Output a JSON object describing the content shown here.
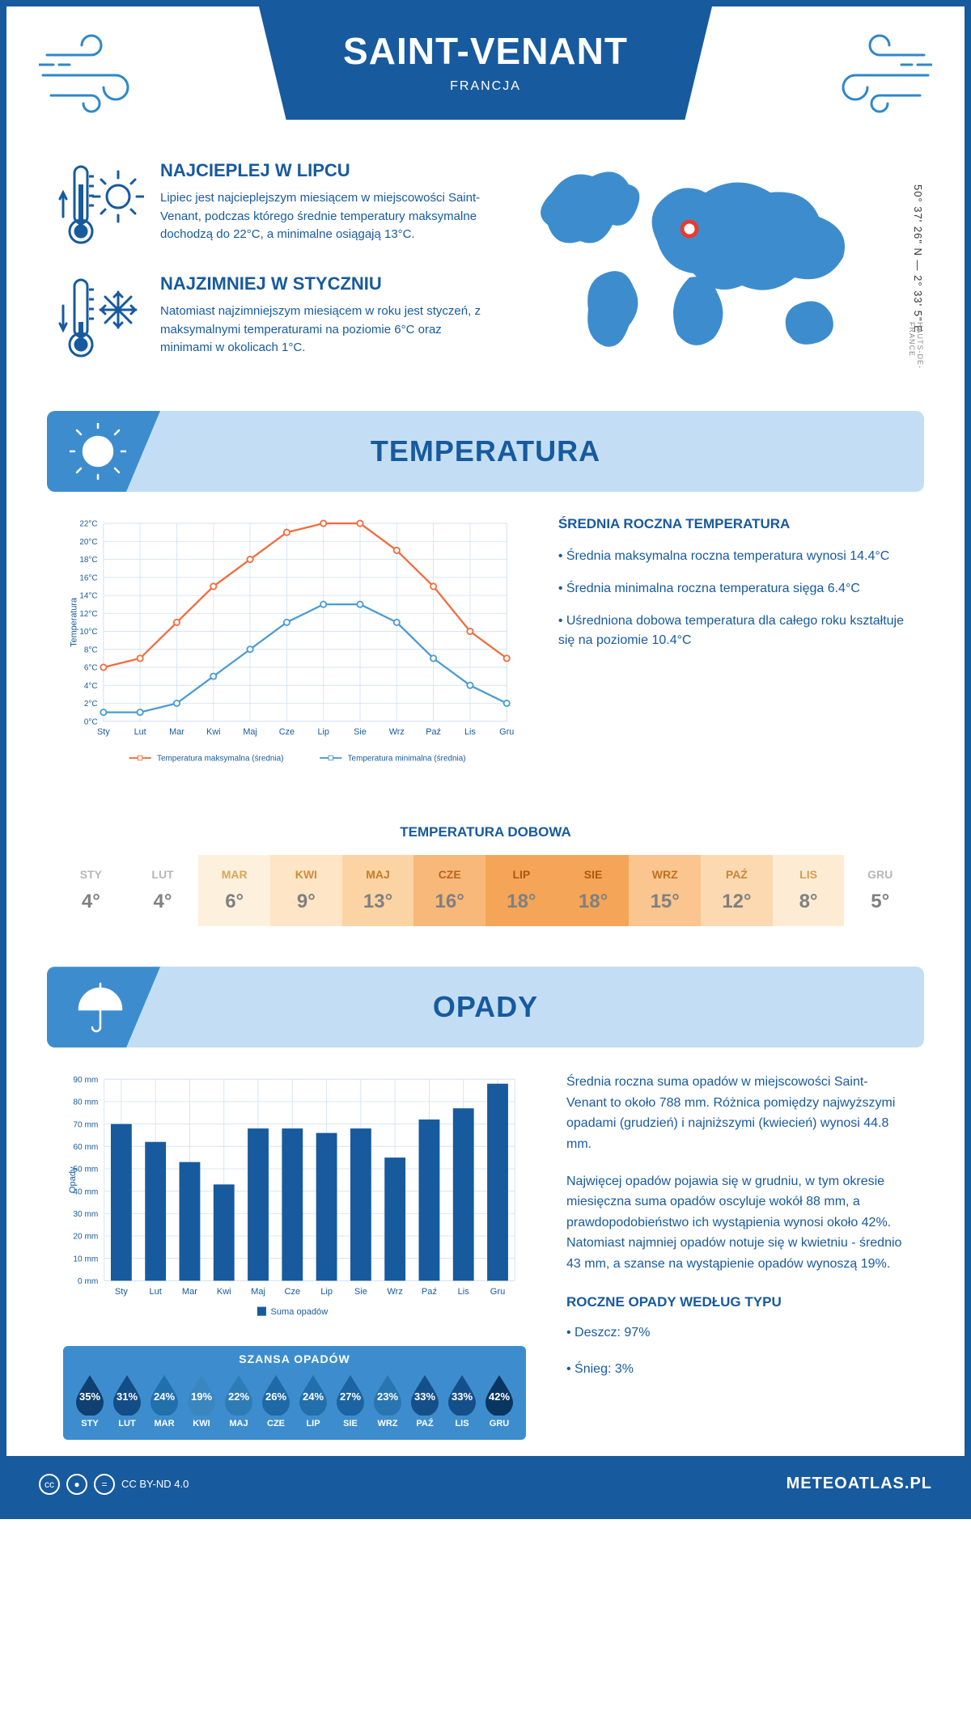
{
  "header": {
    "city": "SAINT-VENANT",
    "country": "FRANCJA",
    "coords": "50° 37' 26\" N — 2° 33' 5\" E",
    "region": "HAUTS-DE-FRANCE"
  },
  "hottest": {
    "title": "NAJCIEPLEJ W LIPCU",
    "text": "Lipiec jest najcieplejszym miesiącem w miejscowości Saint-Venant, podczas którego średnie temperatury maksymalne dochodzą do 22°C, a minimalne osiągają 13°C."
  },
  "coldest": {
    "title": "NAJZIMNIEJ W STYCZNIU",
    "text": "Natomiast najzimniejszym miesiącem w roku jest styczeń, z maksymalnymi temperaturami na poziomie 6°C oraz minimami w okolicach 1°C."
  },
  "sections": {
    "temperature": "TEMPERATURA",
    "precipitation": "OPADY"
  },
  "temp_chart": {
    "ylabel": "Temperatura",
    "months": [
      "Sty",
      "Lut",
      "Mar",
      "Kwi",
      "Maj",
      "Cze",
      "Lip",
      "Sie",
      "Wrz",
      "Paź",
      "Lis",
      "Gru"
    ],
    "max_values": [
      6,
      7,
      11,
      15,
      18,
      21,
      22,
      22,
      19,
      15,
      10,
      7
    ],
    "min_values": [
      1,
      1,
      2,
      5,
      8,
      11,
      13,
      13,
      11,
      7,
      4,
      2
    ],
    "max_color": "#f26c3d",
    "min_color": "#4a9ad4",
    "grid_color": "#d5e4f1",
    "ylim": [
      0,
      22
    ],
    "ytick_step": 2,
    "legend_max": "Temperatura maksymalna (średnia)",
    "legend_min": "Temperatura minimalna (średnia)"
  },
  "temp_info": {
    "title": "ŚREDNIA ROCZNA TEMPERATURA",
    "p1": "• Średnia maksymalna roczna temperatura wynosi 14.4°C",
    "p2": "• Średnia minimalna roczna temperatura sięga 6.4°C",
    "p3": "• Uśredniona dobowa temperatura dla całego roku kształtuje się na poziomie 10.4°C"
  },
  "daily": {
    "title": "TEMPERATURA DOBOWA",
    "months": [
      "STY",
      "LUT",
      "MAR",
      "KWI",
      "MAJ",
      "CZE",
      "LIP",
      "SIE",
      "WRZ",
      "PAŹ",
      "LIS",
      "GRU"
    ],
    "values": [
      "4°",
      "4°",
      "6°",
      "9°",
      "13°",
      "16°",
      "18°",
      "18°",
      "15°",
      "12°",
      "8°",
      "5°"
    ],
    "bg_colors": [
      "#ffffff",
      "#ffffff",
      "#fdf0dd",
      "#fde5c5",
      "#fcd3a3",
      "#f8b879",
      "#f5a557",
      "#f5a557",
      "#fac58e",
      "#fcd9b1",
      "#fdecd3",
      "#ffffff"
    ],
    "label_colors": [
      "#b7b7b7",
      "#b7b7b7",
      "#d9a45a",
      "#d08b3a",
      "#c77a28",
      "#b8661a",
      "#ab5812",
      "#ab5812",
      "#c27023",
      "#cc8436",
      "#d89c50",
      "#b7b7b7"
    ],
    "value_color": "#808080"
  },
  "precip_chart": {
    "ylabel": "Opady",
    "months": [
      "Sty",
      "Lut",
      "Mar",
      "Kwi",
      "Maj",
      "Cze",
      "Lip",
      "Sie",
      "Wrz",
      "Paź",
      "Lis",
      "Gru"
    ],
    "values": [
      70,
      62,
      53,
      43,
      68,
      68,
      66,
      68,
      55,
      72,
      77,
      88
    ],
    "bar_color": "#175a9e",
    "grid_color": "#d5e4f1",
    "ylim": [
      0,
      90
    ],
    "ytick_step": 10,
    "legend": "Suma opadów"
  },
  "precip_info": {
    "p1": "Średnia roczna suma opadów w miejscowości Saint-Venant to około 788 mm. Różnica pomiędzy najwyższymi opadami (grudzień) i najniższymi (kwiecień) wynosi 44.8 mm.",
    "p2": "Najwięcej opadów pojawia się w grudniu, w tym okresie miesięczna suma opadów oscyluje wokół 88 mm, a prawdopodobieństwo ich wystąpienia wynosi około 42%. Natomiast najmniej opadów notuje się w kwietniu - średnio 43 mm, a szanse na wystąpienie opadów wynoszą 19%.",
    "types_title": "ROCZNE OPADY WEDŁUG TYPU",
    "rain": "• Deszcz: 97%",
    "snow": "• Śnieg: 3%"
  },
  "chance": {
    "title": "SZANSA OPADÓW",
    "months": [
      "STY",
      "LUT",
      "MAR",
      "KWI",
      "MAJ",
      "CZE",
      "LIP",
      "SIE",
      "WRZ",
      "PAŹ",
      "LIS",
      "GRU"
    ],
    "values": [
      "35%",
      "31%",
      "24%",
      "19%",
      "22%",
      "26%",
      "24%",
      "27%",
      "23%",
      "33%",
      "33%",
      "42%"
    ],
    "colors": [
      "#0f4071",
      "#134d85",
      "#2170ac",
      "#3a87bf",
      "#2e7cb6",
      "#1e69a6",
      "#2170ac",
      "#1b64a1",
      "#2875b0",
      "#154f8a",
      "#154f8a",
      "#0b3561"
    ]
  },
  "footer": {
    "license": "CC BY-ND 4.0",
    "site": "METEOATLAS.PL"
  },
  "map": {
    "land_color": "#3d8dce",
    "marker_color": "#e63c2e",
    "marker_x": 200,
    "marker_y": 85
  }
}
